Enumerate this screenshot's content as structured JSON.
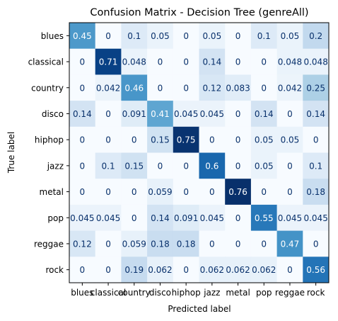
{
  "chart_data": {
    "type": "heatmap",
    "title": "Confusion Matrix - Decision Tree (genreAll)",
    "xlabel": "Predicted label",
    "ylabel": "True label",
    "categories": [
      "blues",
      "classical",
      "country",
      "disco",
      "hiphop",
      "jazz",
      "metal",
      "pop",
      "reggae",
      "rock"
    ],
    "colormap": "Blues",
    "value_range": [
      0,
      0.76
    ],
    "values": [
      [
        0.45,
        0,
        0.1,
        0.05,
        0,
        0.05,
        0,
        0.1,
        0.05,
        0.2
      ],
      [
        0,
        0.71,
        0.048,
        0,
        0,
        0.14,
        0,
        0,
        0.048,
        0.048
      ],
      [
        0,
        0.042,
        0.46,
        0,
        0,
        0.12,
        0.083,
        0,
        0.042,
        0.25
      ],
      [
        0.14,
        0,
        0.091,
        0.41,
        0.045,
        0.045,
        0,
        0.14,
        0,
        0.14
      ],
      [
        0,
        0,
        0,
        0.15,
        0.75,
        0,
        0,
        0.05,
        0.05,
        0
      ],
      [
        0,
        0.1,
        0.15,
        0,
        0,
        0.6,
        0,
        0.05,
        0,
        0.1
      ],
      [
        0,
        0,
        0,
        0.059,
        0,
        0,
        0.76,
        0,
        0,
        0.18
      ],
      [
        0.045,
        0.045,
        0,
        0.14,
        0.091,
        0.045,
        0,
        0.55,
        0.045,
        0.045
      ],
      [
        0.12,
        0,
        0.059,
        0.18,
        0.18,
        0,
        0,
        0,
        0.47,
        0
      ],
      [
        0,
        0,
        0.19,
        0.062,
        0,
        0.062,
        0.062,
        0.062,
        0,
        0.56
      ]
    ],
    "grid": false
  }
}
